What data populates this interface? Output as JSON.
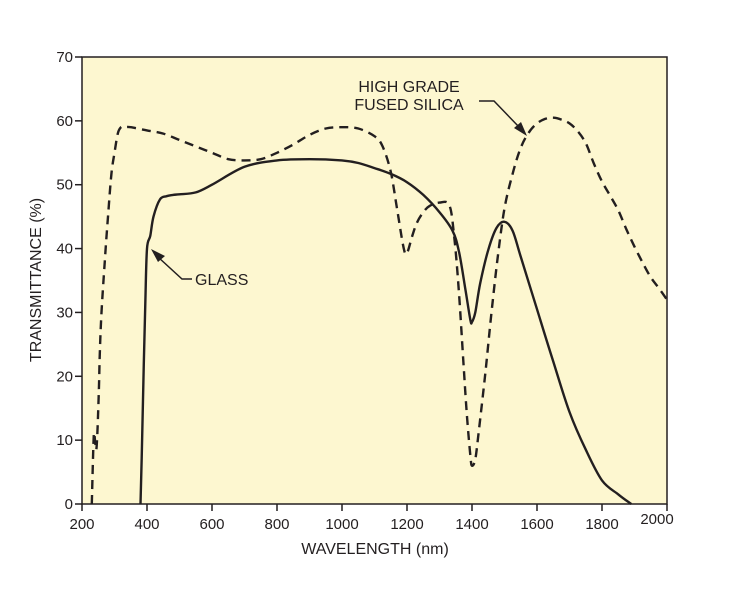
{
  "chart_data": {
    "type": "line",
    "title": "",
    "xlabel": "WAVELENGTH (nm)",
    "ylabel": "TRANSMITTANCE (%)",
    "xlim": [
      200,
      2000
    ],
    "ylim": [
      0,
      70
    ],
    "xticks": [
      200,
      400,
      600,
      800,
      1000,
      1200,
      1400,
      1600,
      1800,
      2000
    ],
    "yticks": [
      0,
      10,
      20,
      30,
      40,
      50,
      60,
      70
    ],
    "grid": false,
    "background_color": "#fdf7d0",
    "line_color": "#231f20",
    "series": [
      {
        "name": "GLASS",
        "style": "solid",
        "x": [
          380,
          385,
          390,
          395,
          400,
          410,
          420,
          440,
          460,
          480,
          500,
          550,
          600,
          700,
          800,
          900,
          1000,
          1050,
          1100,
          1150,
          1200,
          1250,
          1300,
          1340,
          1360,
          1380,
          1395,
          1400,
          1410,
          1425,
          1450,
          1475,
          1500,
          1525,
          1550,
          1600,
          1650,
          1700,
          1750,
          1800,
          1850,
          1890
        ],
        "y": [
          0,
          10,
          22,
          32,
          40,
          42,
          45,
          47.7,
          48.2,
          48.4,
          48.5,
          48.8,
          50,
          52.8,
          53.8,
          54,
          53.8,
          53.4,
          52.6,
          51.7,
          50.4,
          48.4,
          45.7,
          42.8,
          39.5,
          33.5,
          28.8,
          28.5,
          30,
          34.5,
          39.8,
          43.2,
          44.2,
          42.8,
          38.7,
          30.5,
          22.3,
          14.4,
          8.5,
          3.7,
          1.5,
          0
        ]
      },
      {
        "name": "HIGH GRADE FUSED SILICA",
        "style": "dashed",
        "x": [
          230,
          236,
          240,
          244,
          248,
          252,
          255,
          260,
          270,
          280,
          290,
          300,
          310,
          320,
          330,
          350,
          400,
          450,
          500,
          550,
          600,
          650,
          700,
          750,
          800,
          850,
          900,
          950,
          1000,
          1050,
          1100,
          1125,
          1150,
          1170,
          1190,
          1200,
          1215,
          1230,
          1250,
          1270,
          1300,
          1330,
          1345,
          1360,
          1375,
          1385,
          1395,
          1400,
          1410,
          1420,
          1440,
          1460,
          1480,
          1500,
          1525,
          1550,
          1575,
          1600,
          1625,
          1650,
          1675,
          1700,
          1725,
          1750,
          1775,
          1800,
          1825,
          1850,
          1875,
          1900,
          1925,
          1950,
          1975,
          2000
        ],
        "y": [
          0,
          10.5,
          10,
          8.5,
          12,
          18,
          24,
          30,
          38,
          45,
          51.5,
          55,
          58,
          59,
          59,
          59,
          58.5,
          58,
          57,
          56,
          55,
          54,
          53.8,
          54,
          55,
          56.3,
          57.8,
          58.8,
          59,
          58.8,
          57.6,
          56,
          52,
          46,
          40,
          39.3,
          41.8,
          44,
          45.7,
          46.7,
          47.2,
          46.8,
          42,
          33,
          21,
          13.5,
          7.5,
          6,
          7,
          11,
          20,
          30,
          39,
          46.3,
          51.7,
          55.8,
          58.2,
          59.6,
          60.3,
          60.5,
          60.2,
          59.6,
          58.4,
          56.5,
          53.3,
          50.5,
          48.3,
          46,
          43,
          40.3,
          37.8,
          35.5,
          33.8,
          32
        ]
      }
    ],
    "annotations": [
      {
        "text": "GLASS",
        "series": "GLASS",
        "x": 405,
        "y": 40
      },
      {
        "text": "HIGH GRADE",
        "series": "HIGH GRADE FUSED SILICA",
        "x": 1570,
        "y": 57
      },
      {
        "text": "FUSED SILICA",
        "series": "HIGH GRADE FUSED SILICA",
        "x": 1570,
        "y": 57
      }
    ]
  }
}
